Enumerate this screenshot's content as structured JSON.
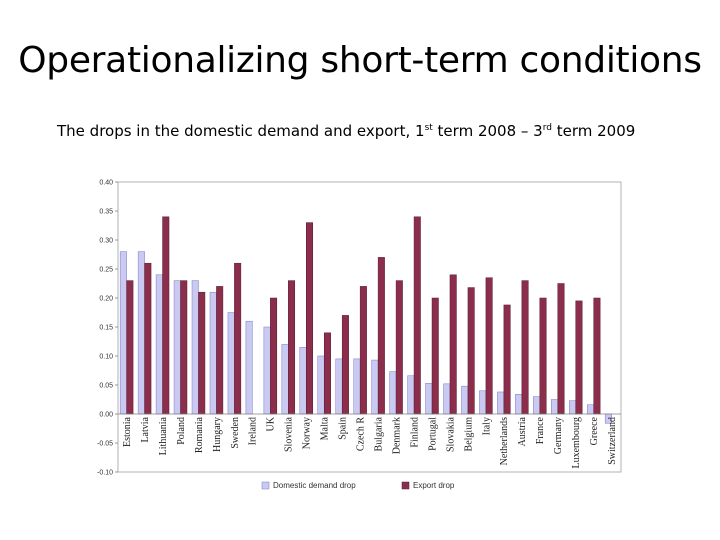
{
  "slide": {
    "title": "Operationalizing short-term conditions",
    "subtitle_parts": {
      "a": "The drops in the domestic demand and export, 1",
      "b": "st",
      "c": " term 2008 – 3",
      "d": "rd",
      "e": " term 2009"
    }
  },
  "chart_data": {
    "type": "bar",
    "title": "",
    "xlabel": "",
    "ylabel": "",
    "ylim": [
      -0.1,
      0.4
    ],
    "yticks": [
      "0.40",
      "0.35",
      "0.30",
      "0.25",
      "0.20",
      "0.15",
      "0.10",
      "0.05",
      "0.00",
      "-0.05",
      "-0.10"
    ],
    "ytick_values": [
      0.4,
      0.35,
      0.3,
      0.25,
      0.2,
      0.15,
      0.1,
      0.05,
      0.0,
      -0.05,
      -0.1
    ],
    "grid": false,
    "legend_position": "bottom",
    "categories": [
      "Estonia",
      "Latvia",
      "Lithuania",
      "Poland",
      "Romania",
      "Hungary",
      "Sweden",
      "Ireland",
      "UK",
      "Slovenia",
      "Norway",
      "Malta",
      "Spain",
      "Czech R",
      "Bulgaria",
      "Denmark",
      "Finland",
      "Portugal",
      "Slovakia",
      "Belgium",
      "Italy",
      "Netherlands",
      "Austria",
      "France",
      "Germany",
      "Luxembourg",
      "Greece",
      "Switzerland"
    ],
    "series": [
      {
        "name": "Domestic demand drop",
        "color": "#c9c9f2",
        "stroke": "#7a7ac8",
        "values": [
          0.28,
          0.28,
          0.24,
          0.23,
          0.23,
          0.21,
          0.175,
          0.16,
          0.15,
          0.12,
          0.115,
          0.1,
          0.095,
          0.095,
          0.093,
          0.073,
          0.066,
          0.053,
          0.052,
          0.048,
          0.04,
          0.038,
          0.034,
          0.03,
          0.025,
          0.023,
          0.016,
          -0.016
        ]
      },
      {
        "name": "Export drop",
        "color": "#8a2e4c",
        "stroke": "#5a1a30",
        "values": [
          0.23,
          0.26,
          0.34,
          0.23,
          0.21,
          0.22,
          0.26,
          null,
          0.2,
          0.23,
          0.33,
          0.14,
          0.17,
          0.22,
          0.27,
          0.23,
          0.34,
          0.2,
          0.24,
          0.218,
          0.235,
          0.188,
          0.23,
          0.2,
          0.225,
          0.195,
          0.2,
          null
        ]
      }
    ]
  }
}
